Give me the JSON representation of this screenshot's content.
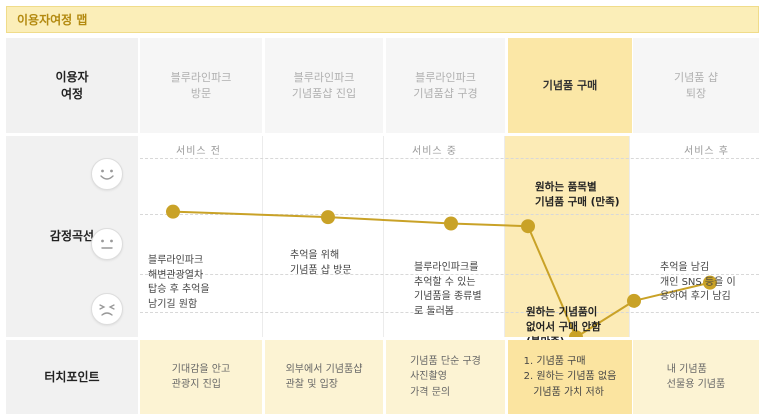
{
  "title": "이용자여정 맵",
  "rows": {
    "journey_label": "이용자\n여정",
    "emotion_label": "감정곡선",
    "touchpoint_label": "터치포인트"
  },
  "stages": [
    "블루라인파크\n방문",
    "블루라인파크\n기념품샵 진입",
    "블루라인파크\n기념품샵 구경",
    "기념품 구매",
    "기념품 샵\n퇴장"
  ],
  "highlight_stage": 3,
  "phases": [
    "서비스 전",
    "서비스 중",
    "서비스 후"
  ],
  "faces": [
    "happy-face-icon",
    "neutral-face-icon",
    "unhappy-face-icon"
  ],
  "emotion_points": [
    {
      "level": 0.63,
      "text": "블루라인파크\n해변관광열차\n탑승 후 추억을\n남기길 원함",
      "bold": false
    },
    {
      "level": 0.57,
      "text": "추억을 위해\n기념품 샵 방문",
      "bold": false
    },
    {
      "level": 0.5,
      "text": "블루라인파크를\n추억할 수 있는\n기념품을 종류별\n로 둘러봄",
      "bold": false
    },
    {
      "level": 0.47,
      "text": "원하는 품목별\n기념품 구매 (만족)",
      "bold": true
    },
    {
      "level": -0.75,
      "text": "원하는 기념품이\n없어서 구매 안함\n(불만족)",
      "bold": true
    },
    {
      "level": -0.35,
      "text": "",
      "bold": false
    },
    {
      "level": -0.15,
      "text": "추억을 남김\n개인 SNS 등을 이\n용하여 후기 남김",
      "bold": false
    }
  ],
  "touchpoints": [
    "기대감을 안고\n관광지 진입",
    "외부에서 기념품샵\n관찰 및 입장",
    "기념품 단순 구경\n사진촬영\n가격 문의",
    "1. 기념품 구매\n2. 원하는 기념품 없음\n   기념품 가치 저하",
    "내 기념품\n선물용 기념품"
  ],
  "colors": {
    "dot": "#c9a227",
    "line": "#c9a227",
    "highlight": "#fbe7a6",
    "touchpoint_bg": "#fcf3d3"
  }
}
